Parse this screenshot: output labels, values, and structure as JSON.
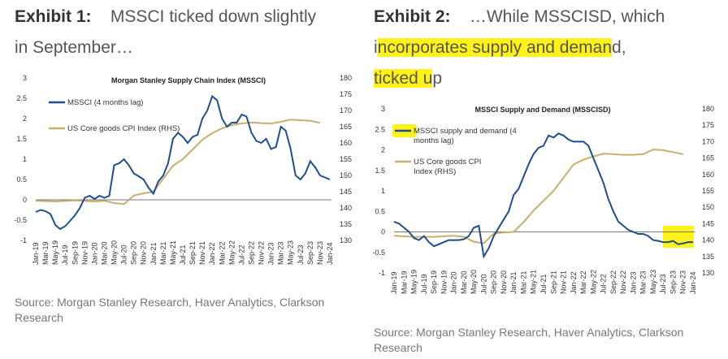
{
  "exhibits": [
    {
      "title_prefix": "Exhibit 1:",
      "title_rest": "MSSCI ticked down slightly",
      "title_line2": "in September…",
      "source": "Source: Morgan Stanley Research, Haver Analytics, Clarkson Research"
    },
    {
      "title_prefix": "Exhibit 2:",
      "title_rest": "…While MSSCISD, which",
      "title_line2_a": "i",
      "title_line2_b": "ncorporates supply and deman",
      "title_line2_c": "d,",
      "title_line3_a": "ticked u",
      "title_line3_b": "p",
      "source": "Source: Morgan Stanley Research, Haver Analytics, Clarkson Research"
    }
  ],
  "colors": {
    "primary_series": "#1f4e8c",
    "secondary_series": "#c9ae6e",
    "highlight": "#fff21a"
  },
  "chart_data": [
    {
      "type": "line",
      "title": "Morgan Stanley Supply Chain Index (MSSCI)",
      "x_tick_labels": [
        "Jan-19",
        "Mar-19",
        "May-19",
        "Jul-19",
        "Sep-19",
        "Nov-19",
        "Jan-20",
        "Mar-20",
        "May-20",
        "Jul-20",
        "Sep-20",
        "Nov-20",
        "Jan-21",
        "Mar-21",
        "May-21",
        "Jul-21",
        "Sep-21",
        "Nov-21",
        "Jan-22",
        "Mar-22",
        "May-22",
        "Jul-22",
        "Sep-22",
        "Nov-22",
        "Jan-23",
        "Mar-23",
        "May-23",
        "Jul-23",
        "Sep-23",
        "Nov-23",
        "Jan-24"
      ],
      "y_left_ticks": [
        "3",
        "2.5",
        "2",
        "1.5",
        "1",
        "0.5",
        "0",
        "-0.5",
        "-1"
      ],
      "y_left_range": [
        -1,
        3
      ],
      "y_right_ticks": [
        "180",
        "175",
        "170",
        "165",
        "160",
        "155",
        "150",
        "145",
        "140",
        "135",
        "130"
      ],
      "y_right_range": [
        130,
        180
      ],
      "legend_position": "top-left",
      "series": [
        {
          "name": "MSSCI (4 months lag)",
          "axis": "left",
          "x": [
            0,
            1,
            2,
            3,
            4,
            5,
            6,
            7,
            8,
            9,
            10,
            11,
            12,
            13,
            14,
            15,
            16,
            17,
            18,
            19,
            20,
            21,
            22,
            23,
            24,
            25,
            26,
            27,
            28,
            29,
            30,
            31,
            32,
            33,
            34,
            35,
            36,
            37,
            38,
            39,
            40,
            41,
            42,
            43,
            44,
            45,
            46,
            47,
            48,
            49,
            50,
            51,
            52,
            53,
            54,
            55,
            56,
            57,
            58,
            59,
            60
          ],
          "y": [
            -0.3,
            -0.25,
            -0.28,
            -0.35,
            -0.62,
            -0.72,
            -0.65,
            -0.52,
            -0.38,
            -0.2,
            0.05,
            0.1,
            0.02,
            0.1,
            0.05,
            0.1,
            0.85,
            0.9,
            1.0,
            0.85,
            0.65,
            0.58,
            0.5,
            0.3,
            0.15,
            0.45,
            0.6,
            0.9,
            1.5,
            1.65,
            1.55,
            1.4,
            1.55,
            1.6,
            2.0,
            2.2,
            2.55,
            2.45,
            2.0,
            1.8,
            1.9,
            1.9,
            2.1,
            2.05,
            1.65,
            1.45,
            1.4,
            1.5,
            1.25,
            1.3,
            1.8,
            1.7,
            1.25,
            0.6,
            0.5,
            0.65,
            0.95,
            0.8,
            0.6,
            0.55,
            0.5
          ]
        },
        {
          "name": "US Core goods CPI Index (RHS)",
          "axis": "right",
          "x": [
            0,
            4,
            8,
            12,
            14,
            16,
            18,
            20,
            22,
            24,
            26,
            28,
            30,
            32,
            34,
            36,
            38,
            40,
            42,
            44,
            46,
            48,
            50,
            52,
            54,
            56,
            58
          ],
          "y": [
            142.2,
            142.0,
            142.3,
            142.0,
            142.2,
            141.5,
            141.2,
            143.8,
            144.5,
            145.0,
            149.0,
            153.0,
            155.0,
            158.0,
            161.0,
            163.0,
            164.5,
            165.5,
            166.0,
            166.3,
            166.1,
            166.0,
            166.5,
            167.2,
            167.0,
            166.8,
            166.2
          ]
        }
      ]
    },
    {
      "type": "line",
      "title": "MSSCI Supply and Demand (MSSCISD)",
      "x_tick_labels": [
        "Jan-19",
        "Mar-19",
        "May-19",
        "Jul-19",
        "Sep-19",
        "Nov-19",
        "Jan-20",
        "Mar-20",
        "May-20",
        "Jul-20",
        "Sep-20",
        "Nov-20",
        "Jan-21",
        "Mar-21",
        "May-21",
        "Jul-21",
        "Sep-21",
        "Nov-21",
        "Jan-22",
        "Mar-22",
        "May-22",
        "Jul-22",
        "Sep-22",
        "Nov-22",
        "Jan-23",
        "Mar-23",
        "May-23",
        "Jul-23",
        "Sep-23",
        "Nov-23",
        "Jan-24"
      ],
      "y_left_ticks": [
        "3",
        "2.5",
        "2",
        "1.5",
        "1",
        "0.5",
        "0",
        "-0.5",
        "-1"
      ],
      "y_left_range": [
        -1,
        3
      ],
      "y_right_ticks": [
        "180",
        "175",
        "170",
        "165",
        "160",
        "155",
        "150",
        "145",
        "140",
        "135",
        "130"
      ],
      "y_right_range": [
        130,
        180
      ],
      "legend_position": "top-left",
      "series": [
        {
          "name": "MSSCI supply and demand (4 months lag)",
          "axis": "left",
          "x": [
            0,
            1,
            2,
            3,
            4,
            5,
            6,
            7,
            8,
            9,
            10,
            11,
            12,
            13,
            14,
            15,
            16,
            17,
            18,
            19,
            20,
            21,
            22,
            23,
            24,
            25,
            26,
            27,
            28,
            29,
            30,
            31,
            32,
            33,
            34,
            35,
            36,
            37,
            38,
            39,
            40,
            41,
            42,
            43,
            44,
            45,
            46,
            47,
            48,
            49,
            50,
            51,
            52,
            53,
            54,
            55,
            56,
            57,
            58,
            59,
            60
          ],
          "y": [
            0.25,
            0.2,
            0.1,
            0.0,
            -0.15,
            -0.2,
            -0.1,
            -0.25,
            -0.35,
            -0.3,
            -0.25,
            -0.2,
            -0.2,
            -0.2,
            -0.18,
            -0.1,
            0.1,
            0.15,
            -0.6,
            -0.4,
            -0.1,
            0.1,
            0.3,
            0.5,
            0.9,
            1.05,
            1.35,
            1.65,
            1.9,
            2.05,
            2.1,
            2.35,
            2.3,
            2.4,
            2.35,
            2.25,
            2.2,
            2.2,
            2.2,
            2.1,
            1.8,
            1.5,
            1.2,
            0.8,
            0.5,
            0.25,
            0.15,
            0.05,
            0.0,
            -0.05,
            -0.05,
            -0.1,
            -0.2,
            -0.22,
            -0.25,
            -0.25,
            -0.22,
            -0.3,
            -0.28,
            -0.25,
            -0.25
          ]
        },
        {
          "name": "US Core goods CPI Index (RHS)",
          "axis": "right",
          "x": [
            0,
            4,
            8,
            12,
            14,
            16,
            18,
            20,
            22,
            24,
            26,
            28,
            30,
            32,
            34,
            36,
            38,
            40,
            42,
            44,
            46,
            48,
            50,
            52,
            54,
            56,
            58
          ],
          "y": [
            141.3,
            141.0,
            141.0,
            141.3,
            141.0,
            139.5,
            139.0,
            142.0,
            142.3,
            142.5,
            145.5,
            149.0,
            152.0,
            155.0,
            159.0,
            163.0,
            164.5,
            165.5,
            166.3,
            166.2,
            166.0,
            166.0,
            166.2,
            167.6,
            167.4,
            166.8,
            166.2
          ]
        }
      ],
      "highlight_region": "Sep-23 to Jan-24"
    }
  ]
}
